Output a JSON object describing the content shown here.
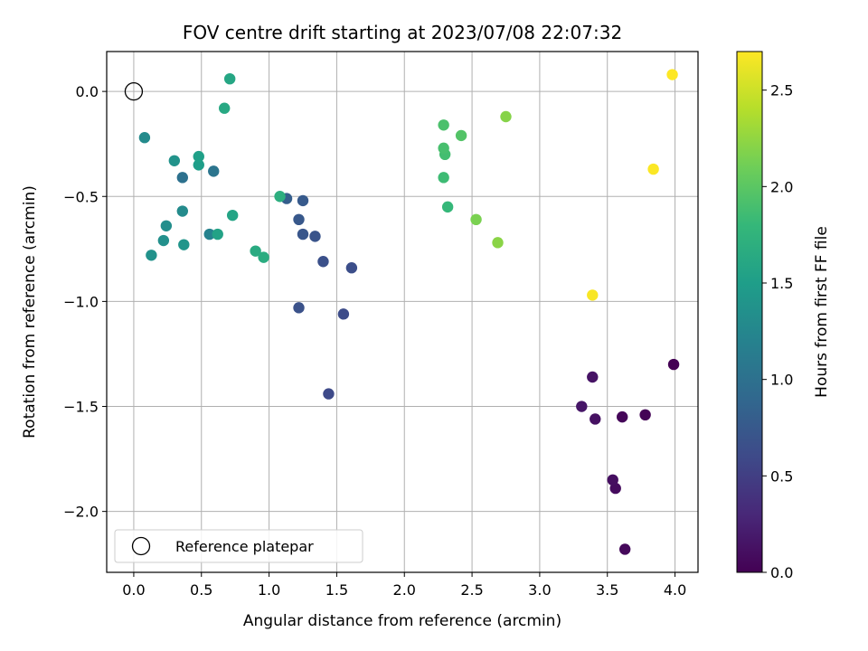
{
  "chart_data": {
    "type": "scatter",
    "title": "FOV centre drift starting at 2023/07/08 22:07:32",
    "xlabel": "Angular distance from reference (arcmin)",
    "ylabel": "Rotation from reference (arcmin)",
    "xlim": [
      -0.2,
      4.17
    ],
    "ylim": [
      -2.29,
      0.19
    ],
    "x_ticks": [
      0.0,
      0.5,
      1.0,
      1.5,
      2.0,
      2.5,
      3.0,
      3.5,
      4.0
    ],
    "x_tick_labels": [
      "0.0",
      "0.5",
      "1.0",
      "1.5",
      "2.0",
      "2.5",
      "3.0",
      "3.5",
      "4.0"
    ],
    "y_ticks": [
      0.0,
      -0.5,
      -1.0,
      -1.5,
      -2.0
    ],
    "y_tick_labels": [
      "0.0",
      "−0.5",
      "−1.0",
      "−1.5",
      "−2.0"
    ],
    "grid": true,
    "colormap": "viridis",
    "colorbar": {
      "label": "Hours from first FF file",
      "range": [
        0,
        2.7
      ],
      "ticks": [
        0.0,
        0.5,
        1.0,
        1.5,
        2.0,
        2.5
      ],
      "tick_labels": [
        "0.0",
        "0.5",
        "1.0",
        "1.5",
        "2.0",
        "2.5"
      ]
    },
    "legend": {
      "placement": "lower-left",
      "entries": [
        {
          "label": "Reference platepar",
          "marker": "open-circle"
        }
      ]
    },
    "reference_point": {
      "x": 0.0,
      "y": 0.0
    },
    "points": [
      {
        "x": 3.99,
        "y": -1.3,
        "hours": 0.0
      },
      {
        "x": 3.78,
        "y": -1.54,
        "hours": 0.02
      },
      {
        "x": 3.61,
        "y": -1.55,
        "hours": 0.04
      },
      {
        "x": 3.63,
        "y": -2.18,
        "hours": 0.06
      },
      {
        "x": 3.56,
        "y": -1.89,
        "hours": 0.08
      },
      {
        "x": 3.54,
        "y": -1.85,
        "hours": 0.1
      },
      {
        "x": 3.41,
        "y": -1.56,
        "hours": 0.12
      },
      {
        "x": 3.39,
        "y": -1.36,
        "hours": 0.14
      },
      {
        "x": 3.31,
        "y": -1.5,
        "hours": 0.16
      },
      {
        "x": 1.44,
        "y": -1.44,
        "hours": 0.6
      },
      {
        "x": 1.55,
        "y": -1.06,
        "hours": 0.62
      },
      {
        "x": 1.61,
        "y": -0.84,
        "hours": 0.64
      },
      {
        "x": 1.4,
        "y": -0.81,
        "hours": 0.66
      },
      {
        "x": 1.22,
        "y": -1.03,
        "hours": 0.68
      },
      {
        "x": 1.34,
        "y": -0.69,
        "hours": 0.7
      },
      {
        "x": 1.25,
        "y": -0.68,
        "hours": 0.72
      },
      {
        "x": 1.22,
        "y": -0.61,
        "hours": 0.74
      },
      {
        "x": 1.25,
        "y": -0.52,
        "hours": 0.76
      },
      {
        "x": 1.13,
        "y": -0.51,
        "hours": 0.8
      },
      {
        "x": 0.36,
        "y": -0.41,
        "hours": 1.0
      },
      {
        "x": 0.59,
        "y": -0.38,
        "hours": 1.05
      },
      {
        "x": 0.56,
        "y": -0.68,
        "hours": 1.2
      },
      {
        "x": 0.36,
        "y": -0.57,
        "hours": 1.3
      },
      {
        "x": 0.24,
        "y": -0.64,
        "hours": 1.33
      },
      {
        "x": 0.22,
        "y": -0.71,
        "hours": 1.35
      },
      {
        "x": 0.13,
        "y": -0.78,
        "hours": 1.37
      },
      {
        "x": 0.37,
        "y": -0.73,
        "hours": 1.4
      },
      {
        "x": 0.08,
        "y": -0.22,
        "hours": 1.3
      },
      {
        "x": 0.3,
        "y": -0.33,
        "hours": 1.38
      },
      {
        "x": 0.48,
        "y": -0.35,
        "hours": 1.5
      },
      {
        "x": 0.48,
        "y": -0.31,
        "hours": 1.52
      },
      {
        "x": 0.62,
        "y": -0.68,
        "hours": 1.55
      },
      {
        "x": 0.73,
        "y": -0.59,
        "hours": 1.57
      },
      {
        "x": 0.71,
        "y": 0.06,
        "hours": 1.6
      },
      {
        "x": 0.67,
        "y": -0.08,
        "hours": 1.62
      },
      {
        "x": 0.9,
        "y": -0.76,
        "hours": 1.65
      },
      {
        "x": 0.96,
        "y": -0.79,
        "hours": 1.67
      },
      {
        "x": 1.08,
        "y": -0.5,
        "hours": 1.69
      },
      {
        "x": 2.32,
        "y": -0.55,
        "hours": 1.8
      },
      {
        "x": 2.29,
        "y": -0.41,
        "hours": 1.85
      },
      {
        "x": 2.3,
        "y": -0.3,
        "hours": 1.88
      },
      {
        "x": 2.29,
        "y": -0.27,
        "hours": 1.9
      },
      {
        "x": 2.29,
        "y": -0.16,
        "hours": 1.92
      },
      {
        "x": 2.42,
        "y": -0.21,
        "hours": 1.96
      },
      {
        "x": 2.53,
        "y": -0.61,
        "hours": 2.15
      },
      {
        "x": 2.75,
        "y": -0.12,
        "hours": 2.2
      },
      {
        "x": 2.69,
        "y": -0.72,
        "hours": 2.22
      },
      {
        "x": 3.39,
        "y": -0.97,
        "hours": 2.68
      },
      {
        "x": 3.84,
        "y": -0.37,
        "hours": 2.69
      },
      {
        "x": 3.98,
        "y": 0.08,
        "hours": 2.7
      }
    ]
  }
}
